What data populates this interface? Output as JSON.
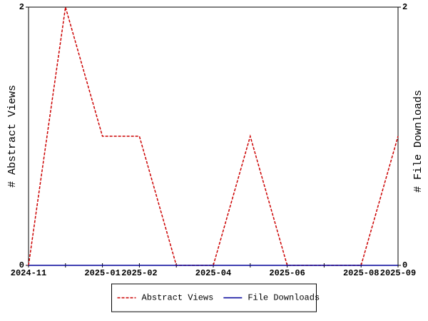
{
  "chart_data": {
    "type": "line",
    "categories": [
      "2024-11",
      null,
      "2025-01",
      "2025-02",
      null,
      "2025-04",
      null,
      "2025-06",
      null,
      "2025-08",
      "2025-09"
    ],
    "series": [
      {
        "name": "Abstract Views",
        "color": "#cc0000",
        "dashed": true,
        "values": [
          0,
          2,
          1,
          1,
          0,
          0,
          1,
          0,
          0,
          0,
          1
        ]
      },
      {
        "name": "File Downloads",
        "color": "#000099",
        "dashed": false,
        "axis": "y2",
        "values": [
          0,
          0,
          0,
          0,
          0,
          0,
          0,
          0,
          0,
          0,
          0
        ]
      }
    ],
    "ylabel": "# Abstract Views",
    "y2label": "# File Downloads",
    "ylim": [
      0,
      2
    ],
    "yticks": [
      0,
      2
    ],
    "y2lim": [
      0,
      2
    ],
    "y2ticks": [
      0,
      2
    ],
    "legend": "bottom"
  }
}
